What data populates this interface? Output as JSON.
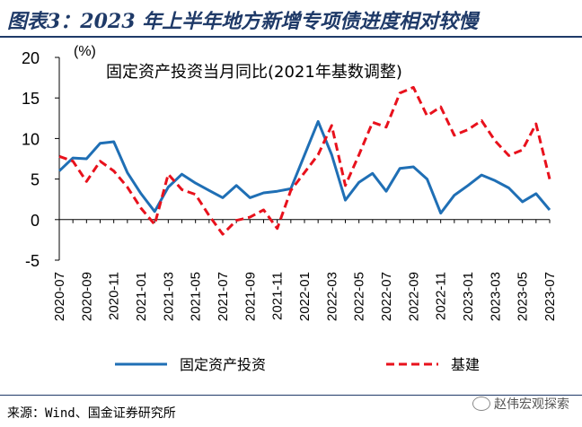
{
  "title": "图表3：2023 年上半年地方新增专项债进度相对较慢",
  "source": "来源：Wind、国金证券研究所",
  "watermark": "赵伟宏观探索",
  "chart_data": {
    "type": "line",
    "subtitle": "固定资产投资当月同比(2021年基数调整)",
    "unit_label": "(%)",
    "ylim": [
      -5,
      20
    ],
    "yticks": [
      -5,
      0,
      5,
      10,
      15,
      20
    ],
    "xtick_labels": [
      "2020-07",
      "2020-09",
      "2020-11",
      "2021-01",
      "2021-03",
      "2021-05",
      "2021-07",
      "2021-09",
      "2021-11",
      "2022-01",
      "2022-03",
      "2022-05",
      "2022-07",
      "2022-09",
      "2022-11",
      "2023-01",
      "2023-03",
      "2023-05",
      "2023-07"
    ],
    "x": [
      "2020-07",
      "2020-08",
      "2020-09",
      "2020-10",
      "2020-11",
      "2020-12",
      "2021-01",
      "2021-02",
      "2021-03",
      "2021-04",
      "2021-05",
      "2021-06",
      "2021-07",
      "2021-08",
      "2021-09",
      "2021-10",
      "2021-11",
      "2021-12",
      "2022-01",
      "2022-02",
      "2022-03",
      "2022-04",
      "2022-05",
      "2022-06",
      "2022-07",
      "2022-08",
      "2022-09",
      "2022-10",
      "2022-11",
      "2022-12",
      "2023-01",
      "2023-02",
      "2023-03",
      "2023-04",
      "2023-05",
      "2023-06",
      "2023-07"
    ],
    "series": [
      {
        "name": "固定资产投资",
        "color": "#1f6fb5",
        "style": "solid",
        "values": [
          6.0,
          7.6,
          7.5,
          9.4,
          9.6,
          5.8,
          3.2,
          1.0,
          4.0,
          5.6,
          4.5,
          3.6,
          2.7,
          4.2,
          2.7,
          3.3,
          3.5,
          3.8,
          null,
          12.1,
          8.0,
          2.4,
          4.6,
          5.7,
          3.5,
          6.3,
          6.5,
          5.0,
          0.8,
          3.0,
          4.2,
          5.5,
          4.8,
          3.9,
          2.2,
          3.2,
          1.2
        ]
      },
      {
        "name": "基建",
        "color": "#e8111c",
        "style": "dashed",
        "values": [
          7.8,
          7.2,
          4.7,
          7.2,
          6.0,
          4.0,
          1.4,
          -0.6,
          5.6,
          3.7,
          3.1,
          0.5,
          -1.8,
          -0.1,
          0.3,
          1.2,
          -1.1,
          3.6,
          null,
          8.0,
          11.6,
          4.2,
          8.0,
          12.0,
          11.4,
          15.6,
          16.3,
          12.8,
          13.9,
          10.4,
          11.1,
          12.2,
          9.7,
          7.9,
          8.6,
          11.8,
          5.0
        ]
      }
    ]
  }
}
